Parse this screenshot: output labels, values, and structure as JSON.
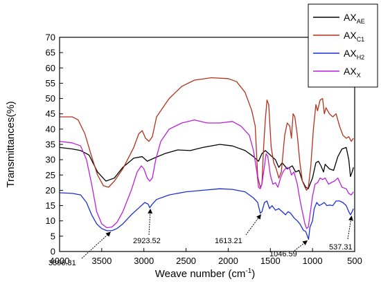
{
  "chart_data": {
    "type": "line",
    "title": "",
    "xlabel": "Weave number",
    "xlabel_unit_base": "cm",
    "xlabel_unit_exp": "-1",
    "ylabel": "Transmittances(%)",
    "xlim": [
      4000,
      500
    ],
    "ylim": [
      0,
      70
    ],
    "x_ticks": [
      4000,
      3500,
      3000,
      2500,
      2000,
      1500,
      1000,
      500
    ],
    "y_ticks": [
      0,
      5,
      10,
      15,
      20,
      25,
      30,
      35,
      40,
      45,
      50,
      55,
      60,
      65,
      70
    ],
    "legend_position": "top-right",
    "series": [
      {
        "name": "AX",
        "sub": "AE",
        "color": "#000000",
        "points": [
          [
            4000,
            34
          ],
          [
            3850,
            33.5
          ],
          [
            3750,
            33
          ],
          [
            3650,
            31.5
          ],
          [
            3550,
            26
          ],
          [
            3450,
            23
          ],
          [
            3350,
            24
          ],
          [
            3250,
            27.5
          ],
          [
            3120,
            30.5
          ],
          [
            3020,
            31
          ],
          [
            2960,
            29.5
          ],
          [
            2880,
            30.5
          ],
          [
            2750,
            32
          ],
          [
            2600,
            33.2
          ],
          [
            2450,
            33
          ],
          [
            2300,
            34
          ],
          [
            2100,
            35
          ],
          [
            1950,
            34.5
          ],
          [
            1800,
            33
          ],
          [
            1700,
            31
          ],
          [
            1640,
            29.5
          ],
          [
            1600,
            32
          ],
          [
            1560,
            33
          ],
          [
            1520,
            32
          ],
          [
            1480,
            31
          ],
          [
            1440,
            30
          ],
          [
            1400,
            27.5
          ],
          [
            1360,
            29
          ],
          [
            1300,
            27
          ],
          [
            1240,
            28
          ],
          [
            1200,
            26
          ],
          [
            1160,
            26.5
          ],
          [
            1120,
            23
          ],
          [
            1080,
            21
          ],
          [
            1050,
            20.5
          ],
          [
            1030,
            22
          ],
          [
            1000,
            24
          ],
          [
            960,
            29
          ],
          [
            930,
            29.5
          ],
          [
            900,
            28
          ],
          [
            870,
            26
          ],
          [
            850,
            28.5
          ],
          [
            800,
            27
          ],
          [
            750,
            26.5
          ],
          [
            700,
            31
          ],
          [
            650,
            33.5
          ],
          [
            600,
            34
          ],
          [
            570,
            30
          ],
          [
            550,
            24.5
          ],
          [
            530,
            26
          ],
          [
            515,
            27.5
          ]
        ]
      },
      {
        "name": "AX",
        "sub": "C1",
        "color": "#b5301a",
        "points": [
          [
            4000,
            44
          ],
          [
            3850,
            44
          ],
          [
            3780,
            43
          ],
          [
            3700,
            38.5
          ],
          [
            3620,
            31
          ],
          [
            3550,
            25
          ],
          [
            3480,
            21.5
          ],
          [
            3420,
            21
          ],
          [
            3350,
            23
          ],
          [
            3250,
            27
          ],
          [
            3120,
            34
          ],
          [
            3060,
            38.5
          ],
          [
            3020,
            39.5
          ],
          [
            2980,
            37
          ],
          [
            2940,
            36
          ],
          [
            2900,
            37.5
          ],
          [
            2850,
            44
          ],
          [
            2700,
            50
          ],
          [
            2550,
            54
          ],
          [
            2400,
            56
          ],
          [
            2200,
            56.8
          ],
          [
            2000,
            56.5
          ],
          [
            1900,
            55.5
          ],
          [
            1800,
            52
          ],
          [
            1720,
            46
          ],
          [
            1680,
            41
          ],
          [
            1650,
            24.5
          ],
          [
            1620,
            21
          ],
          [
            1600,
            22
          ],
          [
            1580,
            34
          ],
          [
            1560,
            43
          ],
          [
            1540,
            49.5
          ],
          [
            1520,
            48
          ],
          [
            1490,
            34
          ],
          [
            1460,
            29
          ],
          [
            1430,
            27
          ],
          [
            1400,
            24
          ],
          [
            1370,
            26
          ],
          [
            1330,
            38
          ],
          [
            1300,
            42
          ],
          [
            1270,
            41
          ],
          [
            1250,
            37
          ],
          [
            1230,
            45
          ],
          [
            1210,
            44
          ],
          [
            1180,
            38
          ],
          [
            1150,
            29
          ],
          [
            1120,
            23
          ],
          [
            1090,
            21
          ],
          [
            1070,
            20
          ],
          [
            1050,
            21
          ],
          [
            1020,
            28
          ],
          [
            990,
            40
          ],
          [
            960,
            48
          ],
          [
            940,
            46
          ],
          [
            910,
            49.5
          ],
          [
            880,
            50
          ],
          [
            860,
            45
          ],
          [
            840,
            47
          ],
          [
            800,
            45
          ],
          [
            760,
            44
          ],
          [
            720,
            45
          ],
          [
            680,
            41
          ],
          [
            640,
            38
          ],
          [
            600,
            37
          ],
          [
            570,
            37.5
          ],
          [
            540,
            36
          ],
          [
            515,
            37
          ]
        ]
      },
      {
        "name": "AX",
        "sub": "H2",
        "color": "#1a2fd0",
        "points": [
          [
            4000,
            19.2
          ],
          [
            3850,
            19
          ],
          [
            3750,
            18.5
          ],
          [
            3680,
            16
          ],
          [
            3620,
            12
          ],
          [
            3560,
            9
          ],
          [
            3500,
            7.5
          ],
          [
            3440,
            6.8
          ],
          [
            3380,
            6.8
          ],
          [
            3320,
            7.5
          ],
          [
            3250,
            9
          ],
          [
            3150,
            12
          ],
          [
            3050,
            14.5
          ],
          [
            2990,
            16
          ],
          [
            2950,
            15.5
          ],
          [
            2930,
            14.3
          ],
          [
            2900,
            15.5
          ],
          [
            2850,
            17
          ],
          [
            2700,
            18.5
          ],
          [
            2500,
            19.5
          ],
          [
            2300,
            20
          ],
          [
            2100,
            20.5
          ],
          [
            1950,
            20.3
          ],
          [
            1800,
            19.5
          ],
          [
            1700,
            17.5
          ],
          [
            1650,
            16
          ],
          [
            1620,
            12.5
          ],
          [
            1600,
            13
          ],
          [
            1570,
            16
          ],
          [
            1540,
            16.5
          ],
          [
            1510,
            14
          ],
          [
            1480,
            15
          ],
          [
            1440,
            13.5
          ],
          [
            1400,
            14
          ],
          [
            1360,
            13
          ],
          [
            1320,
            12
          ],
          [
            1290,
            13
          ],
          [
            1260,
            12.5
          ],
          [
            1220,
            11
          ],
          [
            1180,
            10
          ],
          [
            1150,
            9
          ],
          [
            1110,
            7
          ],
          [
            1080,
            6.5
          ],
          [
            1060,
            5
          ],
          [
            1047,
            4
          ],
          [
            1030,
            8
          ],
          [
            1000,
            10
          ],
          [
            980,
            14
          ],
          [
            950,
            16
          ],
          [
            920,
            15
          ],
          [
            890,
            15.5
          ],
          [
            860,
            16
          ],
          [
            830,
            15
          ],
          [
            800,
            15.2
          ],
          [
            760,
            15
          ],
          [
            720,
            16.5
          ],
          [
            680,
            16.5
          ],
          [
            640,
            16
          ],
          [
            600,
            15
          ],
          [
            570,
            13
          ],
          [
            550,
            12
          ],
          [
            530,
            13
          ],
          [
            515,
            14
          ]
        ]
      },
      {
        "name": "AX",
        "sub": "X",
        "color": "#bc1fdc",
        "points": [
          [
            4000,
            36
          ],
          [
            3850,
            35.5
          ],
          [
            3750,
            34.5
          ],
          [
            3680,
            30
          ],
          [
            3620,
            22
          ],
          [
            3560,
            13
          ],
          [
            3500,
            9
          ],
          [
            3440,
            7.8
          ],
          [
            3380,
            8
          ],
          [
            3320,
            9.5
          ],
          [
            3250,
            13
          ],
          [
            3150,
            20
          ],
          [
            3080,
            26
          ],
          [
            3030,
            28
          ],
          [
            3000,
            27
          ],
          [
            2960,
            24
          ],
          [
            2930,
            23
          ],
          [
            2900,
            24
          ],
          [
            2860,
            30
          ],
          [
            2800,
            36
          ],
          [
            2700,
            40
          ],
          [
            2550,
            42
          ],
          [
            2400,
            43
          ],
          [
            2250,
            42
          ],
          [
            2100,
            42
          ],
          [
            1950,
            42.5
          ],
          [
            1850,
            41
          ],
          [
            1750,
            38
          ],
          [
            1700,
            33
          ],
          [
            1660,
            26
          ],
          [
            1640,
            21
          ],
          [
            1620,
            20.5
          ],
          [
            1600,
            22
          ],
          [
            1570,
            28
          ],
          [
            1550,
            32
          ],
          [
            1530,
            31
          ],
          [
            1500,
            25
          ],
          [
            1470,
            22
          ],
          [
            1440,
            22.5
          ],
          [
            1410,
            21
          ],
          [
            1380,
            24
          ],
          [
            1350,
            26
          ],
          [
            1310,
            27.5
          ],
          [
            1270,
            27
          ],
          [
            1250,
            25
          ],
          [
            1220,
            26
          ],
          [
            1180,
            22
          ],
          [
            1150,
            17
          ],
          [
            1120,
            13
          ],
          [
            1090,
            9
          ],
          [
            1070,
            7.5
          ],
          [
            1050,
            8
          ],
          [
            1030,
            12
          ],
          [
            1000,
            18
          ],
          [
            970,
            22
          ],
          [
            940,
            22.5
          ],
          [
            910,
            24
          ],
          [
            880,
            23.5
          ],
          [
            850,
            24
          ],
          [
            810,
            22
          ],
          [
            780,
            22.5
          ],
          [
            740,
            23
          ],
          [
            700,
            24
          ],
          [
            650,
            21
          ],
          [
            600,
            20.5
          ],
          [
            570,
            19
          ],
          [
            540,
            18.5
          ],
          [
            515,
            19.5
          ]
        ]
      }
    ],
    "annotations": [
      {
        "label": "3396.31",
        "x": 3396.31,
        "y": 6.8
      },
      {
        "label": "2923.52",
        "x": 2923.52,
        "y": 14.3
      },
      {
        "label": "1613.21",
        "x": 1613.21,
        "y": 12.5
      },
      {
        "label": "1046.59",
        "x": 1046.59,
        "y": 4.0
      },
      {
        "label": "537.31",
        "x": 537.31,
        "y": 12.0
      }
    ]
  }
}
